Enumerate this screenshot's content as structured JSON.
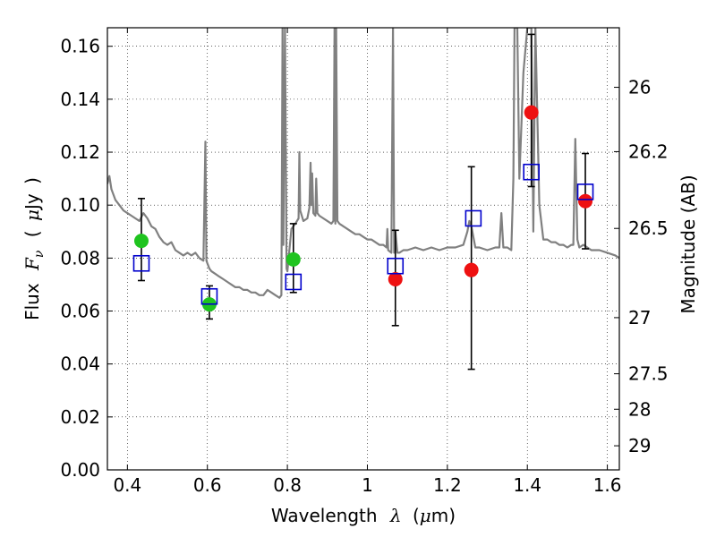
{
  "chart_data": {
    "type": "scatter",
    "xlabel": {
      "prefix": "Wavelength",
      "symbol": "λ",
      "open": "(",
      "unit_prefix": "μ",
      "unit": "m",
      "close": ")"
    },
    "ylabel": {
      "prefix": "Flux",
      "symbol": "F",
      "sub": "ν",
      "open": "(",
      "unit_prefix": "μ",
      "unit": "Jy",
      "close": ")"
    },
    "y2label": "Magnitude (AB)",
    "xlim": [
      0.35,
      1.63
    ],
    "ylim": [
      0.0,
      0.167
    ],
    "x_ticks": [
      0.4,
      0.6,
      0.8,
      1.0,
      1.2,
      1.4,
      1.6
    ],
    "x_tick_labels": [
      "0.4",
      "0.6",
      "0.8",
      "1",
      "1.2",
      "1.4",
      "1.6"
    ],
    "y_ticks": [
      0.0,
      0.02,
      0.04,
      0.06,
      0.08,
      0.1,
      0.12,
      0.14,
      0.16
    ],
    "y_tick_labels": [
      "0.00",
      "0.02",
      "0.04",
      "0.06",
      "0.08",
      "0.10",
      "0.12",
      "0.14",
      "0.16"
    ],
    "y2_ticks": [
      {
        "label": "26",
        "flux": 0.1445
      },
      {
        "label": "26.2",
        "flux": 0.1202
      },
      {
        "label": "26.5",
        "flux": 0.0912
      },
      {
        "label": "27",
        "flux": 0.0575
      },
      {
        "label": "27.5",
        "flux": 0.0363
      },
      {
        "label": "28",
        "flux": 0.0229
      },
      {
        "label": "29",
        "flux": 0.0091
      }
    ],
    "grid": true,
    "colors": {
      "model": "#808080",
      "green": "#1fc41f",
      "red": "#ee1111",
      "model_phot": "#0000cc",
      "errorbar": "#000000"
    },
    "series": [
      {
        "kind": "line",
        "x": [
          0.35,
          0.355,
          0.36,
          0.37,
          0.38,
          0.39,
          0.4,
          0.41,
          0.42,
          0.43,
          0.44,
          0.45,
          0.46,
          0.47,
          0.48,
          0.49,
          0.5,
          0.51,
          0.52,
          0.53,
          0.54,
          0.55,
          0.56,
          0.57,
          0.58,
          0.59,
          0.595,
          0.5975,
          0.6,
          0.605,
          0.61,
          0.62,
          0.63,
          0.64,
          0.65,
          0.66,
          0.67,
          0.68,
          0.69,
          0.7,
          0.71,
          0.72,
          0.73,
          0.74,
          0.75,
          0.76,
          0.77,
          0.78,
          0.785,
          0.788,
          0.79,
          0.794,
          0.798,
          0.8,
          0.81,
          0.82,
          0.828,
          0.83,
          0.832,
          0.84,
          0.85,
          0.855,
          0.858,
          0.86,
          0.862,
          0.865,
          0.87,
          0.872,
          0.875,
          0.88,
          0.89,
          0.9,
          0.91,
          0.915,
          0.918,
          0.92,
          0.922,
          0.925,
          0.93,
          0.94,
          0.95,
          0.96,
          0.97,
          0.98,
          0.99,
          1.0,
          1.01,
          1.02,
          1.03,
          1.04,
          1.048,
          1.05,
          1.052,
          1.06,
          1.064,
          1.067,
          1.07,
          1.075,
          1.08,
          1.09,
          1.1,
          1.12,
          1.14,
          1.16,
          1.18,
          1.2,
          1.22,
          1.24,
          1.25,
          1.255,
          1.26,
          1.27,
          1.28,
          1.3,
          1.32,
          1.33,
          1.335,
          1.34,
          1.35,
          1.36,
          1.365,
          1.368,
          1.37,
          1.375,
          1.38,
          1.39,
          1.4,
          1.405,
          1.41,
          1.415,
          1.42,
          1.43,
          1.44,
          1.45,
          1.46,
          1.47,
          1.48,
          1.49,
          1.5,
          1.51,
          1.515,
          1.52,
          1.525,
          1.53,
          1.54,
          1.55,
          1.56,
          1.58,
          1.6,
          1.62,
          1.63
        ],
        "y": [
          0.108,
          0.111,
          0.106,
          0.102,
          0.1,
          0.098,
          0.097,
          0.096,
          0.095,
          0.094,
          0.097,
          0.095,
          0.092,
          0.091,
          0.088,
          0.086,
          0.085,
          0.086,
          0.083,
          0.082,
          0.081,
          0.082,
          0.081,
          0.082,
          0.08,
          0.079,
          0.124,
          0.079,
          0.078,
          0.076,
          0.075,
          0.074,
          0.073,
          0.072,
          0.071,
          0.07,
          0.069,
          0.069,
          0.068,
          0.068,
          0.067,
          0.067,
          0.066,
          0.066,
          0.068,
          0.067,
          0.066,
          0.065,
          0.066,
          0.167,
          0.085,
          0.167,
          0.076,
          0.075,
          0.091,
          0.093,
          0.095,
          0.12,
          0.098,
          0.094,
          0.095,
          0.099,
          0.116,
          0.1,
          0.112,
          0.097,
          0.096,
          0.11,
          0.097,
          0.096,
          0.095,
          0.094,
          0.093,
          0.094,
          0.167,
          0.093,
          0.167,
          0.094,
          0.093,
          0.092,
          0.091,
          0.09,
          0.089,
          0.089,
          0.088,
          0.087,
          0.087,
          0.086,
          0.085,
          0.085,
          0.084,
          0.091,
          0.083,
          0.082,
          0.167,
          0.082,
          0.09,
          0.082,
          0.082,
          0.083,
          0.083,
          0.084,
          0.083,
          0.084,
          0.083,
          0.084,
          0.084,
          0.085,
          0.09,
          0.094,
          0.092,
          0.084,
          0.084,
          0.083,
          0.084,
          0.084,
          0.097,
          0.084,
          0.084,
          0.083,
          0.11,
          0.167,
          0.167,
          0.167,
          0.11,
          0.15,
          0.167,
          0.167,
          0.167,
          0.09,
          0.167,
          0.1,
          0.087,
          0.087,
          0.086,
          0.086,
          0.085,
          0.085,
          0.084,
          0.085,
          0.085,
          0.125,
          0.087,
          0.084,
          0.085,
          0.084,
          0.083,
          0.083,
          0.082,
          0.081,
          0.08
        ]
      },
      {
        "kind": "points",
        "marker": "circle",
        "color": "green",
        "x": [
          0.435,
          0.605,
          0.815
        ],
        "y": [
          0.0865,
          0.0625,
          0.0795
        ],
        "yerr_lo": [
          0.0715,
          0.057,
          0.067
        ],
        "yerr_hi": [
          0.1025,
          0.0695,
          0.093
        ]
      },
      {
        "kind": "points",
        "marker": "circle",
        "color": "red",
        "x": [
          1.07,
          1.26,
          1.41,
          1.545
        ],
        "y": [
          0.072,
          0.0755,
          0.135,
          0.1015
        ],
        "yerr_lo": [
          0.0545,
          0.038,
          0.107,
          0.0835
        ],
        "yerr_hi": [
          0.0905,
          0.1145,
          0.1645,
          0.1195
        ]
      },
      {
        "kind": "points",
        "marker": "open-square",
        "color": "model_phot",
        "x": [
          0.435,
          0.605,
          0.815,
          1.07,
          1.265,
          1.41,
          1.545
        ],
        "y": [
          0.078,
          0.0655,
          0.071,
          0.077,
          0.095,
          0.1125,
          0.105
        ]
      }
    ]
  }
}
